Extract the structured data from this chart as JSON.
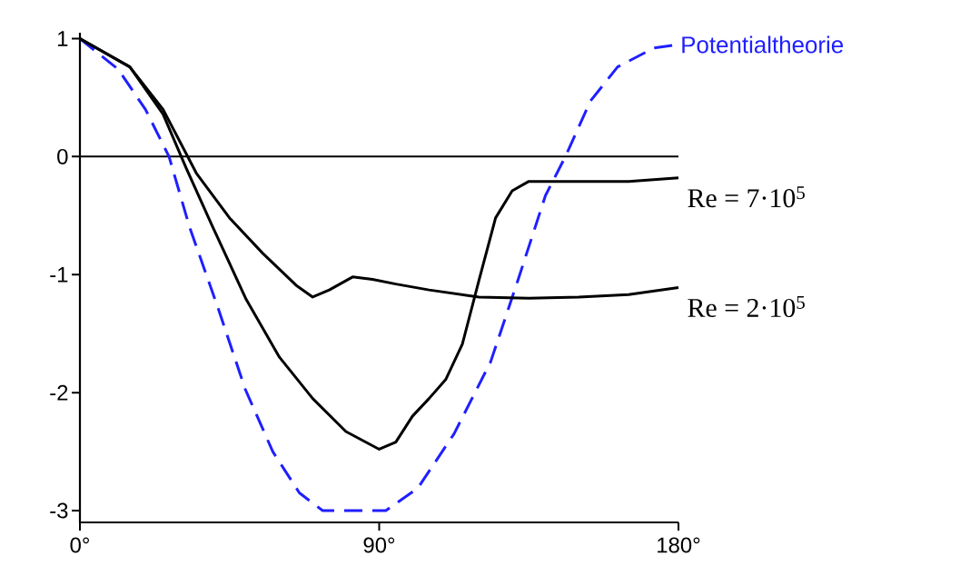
{
  "chart_data": {
    "type": "line",
    "xlim": [
      0,
      180
    ],
    "ylim": [
      -3.1,
      1.05
    ],
    "xticks": [
      {
        "value": 0,
        "label": "0°"
      },
      {
        "value": 90,
        "label": "90°"
      },
      {
        "value": 180,
        "label": "180°"
      }
    ],
    "yticks": [
      -3,
      -2,
      -1,
      0,
      1
    ],
    "ref_lines": [
      {
        "axis": "y",
        "value": 0,
        "color": "#000000"
      }
    ],
    "series": [
      {
        "name": "Potentialtheorie",
        "color": "#1f1fff",
        "line_style": "dashed",
        "x": [
          0,
          11.5,
          19.7,
          26.8,
          33,
          41.5,
          49.7,
          58,
          66,
          73,
          92,
          101.6,
          112.5,
          123.5,
          131.7,
          140,
          146,
          153.5,
          161.7,
          172.6,
          180
        ],
        "values": [
          1,
          0.74,
          0.4,
          0,
          -0.6,
          -1.28,
          -1.97,
          -2.5,
          -2.85,
          -3.0,
          -3.0,
          -2.81,
          -2.35,
          -1.74,
          -1.05,
          -0.33,
          0,
          0.47,
          0.76,
          0.92,
          0.95
        ]
      },
      {
        "name": "Re = 7·10$^{5}$",
        "color": "#000000",
        "line_style": "solid",
        "x": [
          0,
          15,
          25,
          32,
          40,
          50,
          60,
          70,
          80,
          90,
          95,
          100,
          105,
          110,
          115,
          120,
          125,
          130,
          135,
          150,
          165,
          180
        ],
        "values": [
          1,
          0.76,
          0.36,
          -0.1,
          -0.6,
          -1.21,
          -1.7,
          -2.05,
          -2.33,
          -2.48,
          -2.42,
          -2.2,
          -2.05,
          -1.89,
          -1.59,
          -1.05,
          -0.52,
          -0.29,
          -0.21,
          -0.21,
          -0.21,
          -0.18
        ]
      },
      {
        "name": "Re = 2·10$^{5}$",
        "color": "#000000",
        "line_style": "solid",
        "x": [
          0,
          15,
          25,
          35,
          45,
          55,
          65,
          70,
          75,
          82,
          88,
          95,
          105,
          120,
          135,
          150,
          165,
          180
        ],
        "values": [
          1,
          0.76,
          0.4,
          -0.14,
          -0.52,
          -0.82,
          -1.09,
          -1.19,
          -1.13,
          -1.02,
          -1.04,
          -1.08,
          -1.13,
          -1.19,
          -1.2,
          -1.19,
          -1.17,
          -1.11
        ]
      }
    ]
  }
}
